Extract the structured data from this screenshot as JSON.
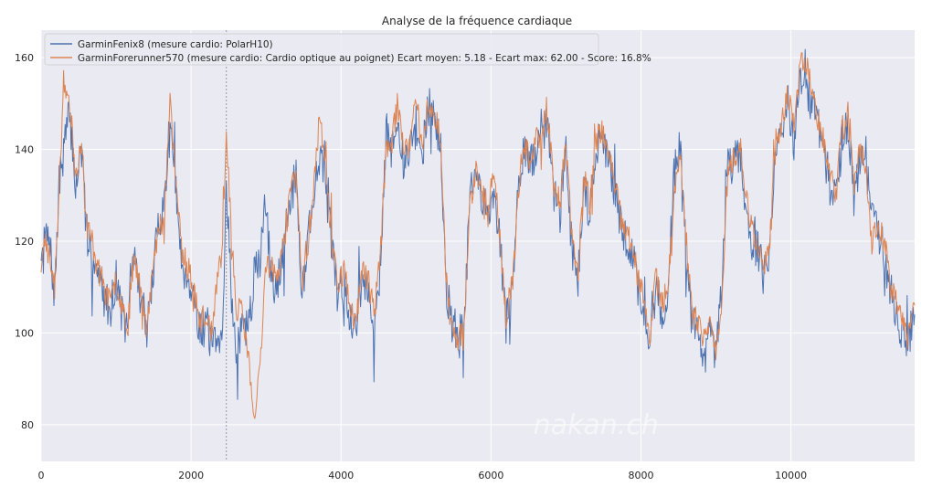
{
  "chart_data": {
    "type": "line",
    "title": "Analyse de la fréquence cardiaque",
    "xlabel": "",
    "ylabel": "",
    "xlim": [
      0,
      11650
    ],
    "ylim": [
      72,
      166
    ],
    "xticks": [
      0,
      2000,
      4000,
      6000,
      8000,
      10000
    ],
    "yticks": [
      80,
      100,
      120,
      140,
      160
    ],
    "grid": true,
    "legend_position": "top-left",
    "vline_x": 2470,
    "watermark": "nakan.ch",
    "series": [
      {
        "name": "GarminFenix8 (mesure cardio: PolarH10)",
        "color": "#4c72b0",
        "x": [
          0,
          60,
          120,
          180,
          240,
          300,
          380,
          460,
          540,
          600,
          680,
          760,
          840,
          920,
          1000,
          1080,
          1160,
          1240,
          1320,
          1400,
          1480,
          1560,
          1640,
          1720,
          1800,
          1880,
          1960,
          2040,
          2120,
          2200,
          2280,
          2360,
          2420,
          2470,
          2540,
          2600,
          2680,
          2760,
          2840,
          2920,
          3000,
          3080,
          3160,
          3240,
          3320,
          3400,
          3480,
          3560,
          3640,
          3720,
          3800,
          3880,
          3960,
          4040,
          4120,
          4200,
          4280,
          4360,
          4440,
          4520,
          4600,
          4680,
          4760,
          4840,
          4920,
          5000,
          5080,
          5160,
          5240,
          5320,
          5400,
          5480,
          5560,
          5640,
          5720,
          5800,
          5880,
          5960,
          6040,
          6120,
          6200,
          6280,
          6360,
          6440,
          6520,
          6600,
          6680,
          6760,
          6840,
          6920,
          7000,
          7080,
          7160,
          7240,
          7320,
          7400,
          7480,
          7560,
          7640,
          7720,
          7800,
          7880,
          7960,
          8040,
          8120,
          8200,
          8280,
          8360,
          8440,
          8520,
          8600,
          8680,
          8760,
          8840,
          8920,
          9000,
          9080,
          9160,
          9240,
          9320,
          9400,
          9480,
          9560,
          9640,
          9720,
          9800,
          9880,
          9960,
          10040,
          10120,
          10200,
          10280,
          10360,
          10440,
          10520,
          10600,
          10680,
          10760,
          10840,
          10920,
          11000,
          11080,
          11160,
          11240,
          11320,
          11400,
          11480,
          11560,
          11650
        ],
        "y": [
          112,
          122,
          118,
          108,
          132,
          140,
          148,
          132,
          140,
          122,
          118,
          112,
          108,
          105,
          112,
          104,
          100,
          118,
          108,
          100,
          110,
          124,
          128,
          148,
          130,
          115,
          112,
          108,
          100,
          102,
          98,
          96,
          100,
          134,
          108,
          94,
          102,
          100,
          112,
          118,
          126,
          110,
          112,
          120,
          128,
          135,
          108,
          122,
          130,
          140,
          132,
          118,
          108,
          112,
          104,
          100,
          112,
          110,
          102,
          114,
          142,
          140,
          145,
          136,
          140,
          145,
          138,
          150,
          146,
          142,
          110,
          102,
          100,
          100,
          130,
          135,
          128,
          126,
          132,
          120,
          102,
          108,
          130,
          140,
          136,
          140,
          142,
          146,
          130,
          126,
          140,
          118,
          112,
          132,
          126,
          140,
          142,
          138,
          132,
          124,
          120,
          118,
          110,
          105,
          98,
          110,
          104,
          108,
          134,
          142,
          118,
          102,
          100,
          96,
          100,
          94,
          110,
          138,
          136,
          140,
          128,
          120,
          118,
          112,
          118,
          140,
          144,
          150,
          142,
          155,
          154,
          150,
          145,
          140,
          132,
          128,
          142,
          146,
          130,
          138,
          135,
          128,
          122,
          118,
          110,
          105,
          100,
          98,
          104
        ],
        "noise": 4.5,
        "seed": 7
      },
      {
        "name": "GarminForerunner570 (mesure cardio: Cardio optique au poignet) Ecart moyen: 5.18 - Ecart max: 62.00 - Score: 16.8%",
        "color": "#dd8452",
        "x": [
          0,
          60,
          120,
          180,
          240,
          300,
          380,
          460,
          540,
          600,
          680,
          760,
          840,
          920,
          1000,
          1080,
          1160,
          1240,
          1320,
          1400,
          1480,
          1560,
          1640,
          1720,
          1800,
          1880,
          1960,
          2040,
          2120,
          2200,
          2280,
          2360,
          2420,
          2470,
          2540,
          2600,
          2680,
          2760,
          2840,
          2920,
          3000,
          3080,
          3160,
          3240,
          3320,
          3400,
          3480,
          3560,
          3640,
          3720,
          3800,
          3880,
          3960,
          4040,
          4120,
          4200,
          4280,
          4360,
          4440,
          4520,
          4600,
          4680,
          4760,
          4840,
          4920,
          5000,
          5080,
          5160,
          5240,
          5320,
          5400,
          5480,
          5560,
          5640,
          5720,
          5800,
          5880,
          5960,
          6040,
          6120,
          6200,
          6280,
          6360,
          6440,
          6520,
          6600,
          6680,
          6760,
          6840,
          6920,
          7000,
          7080,
          7160,
          7240,
          7320,
          7400,
          7480,
          7560,
          7640,
          7720,
          7800,
          7880,
          7960,
          8040,
          8120,
          8200,
          8280,
          8360,
          8440,
          8520,
          8600,
          8680,
          8760,
          8840,
          8920,
          9000,
          9080,
          9160,
          9240,
          9320,
          9400,
          9480,
          9560,
          9640,
          9720,
          9800,
          9880,
          9960,
          10040,
          10120,
          10200,
          10280,
          10360,
          10440,
          10520,
          10600,
          10680,
          10760,
          10840,
          10920,
          11000,
          11080,
          11160,
          11240,
          11320,
          11400,
          11480,
          11560,
          11650
        ],
        "y": [
          114,
          120,
          116,
          110,
          130,
          156,
          150,
          135,
          142,
          124,
          120,
          114,
          110,
          106,
          112,
          106,
          102,
          118,
          110,
          102,
          112,
          122,
          126,
          150,
          132,
          118,
          114,
          110,
          102,
          104,
          100,
          112,
          118,
          146,
          120,
          106,
          104,
          96,
          80,
          92,
          116,
          114,
          112,
          120,
          130,
          136,
          110,
          120,
          132,
          148,
          134,
          120,
          110,
          114,
          106,
          102,
          114,
          112,
          104,
          116,
          140,
          142,
          150,
          138,
          142,
          152,
          140,
          150,
          148,
          144,
          112,
          100,
          98,
          102,
          128,
          136,
          130,
          128,
          134,
          122,
          104,
          110,
          128,
          142,
          138,
          142,
          144,
          148,
          132,
          128,
          142,
          120,
          114,
          134,
          128,
          142,
          144,
          140,
          134,
          126,
          122,
          120,
          112,
          107,
          100,
          112,
          106,
          110,
          130,
          140,
          120,
          104,
          102,
          98,
          102,
          96,
          108,
          136,
          138,
          142,
          130,
          122,
          120,
          114,
          120,
          142,
          146,
          152,
          144,
          158,
          160,
          152,
          147,
          142,
          134,
          130,
          144,
          148,
          132,
          140,
          136,
          120,
          124,
          120,
          112,
          107,
          102,
          100,
          106
        ],
        "noise": 3.0,
        "seed": 23
      }
    ]
  }
}
